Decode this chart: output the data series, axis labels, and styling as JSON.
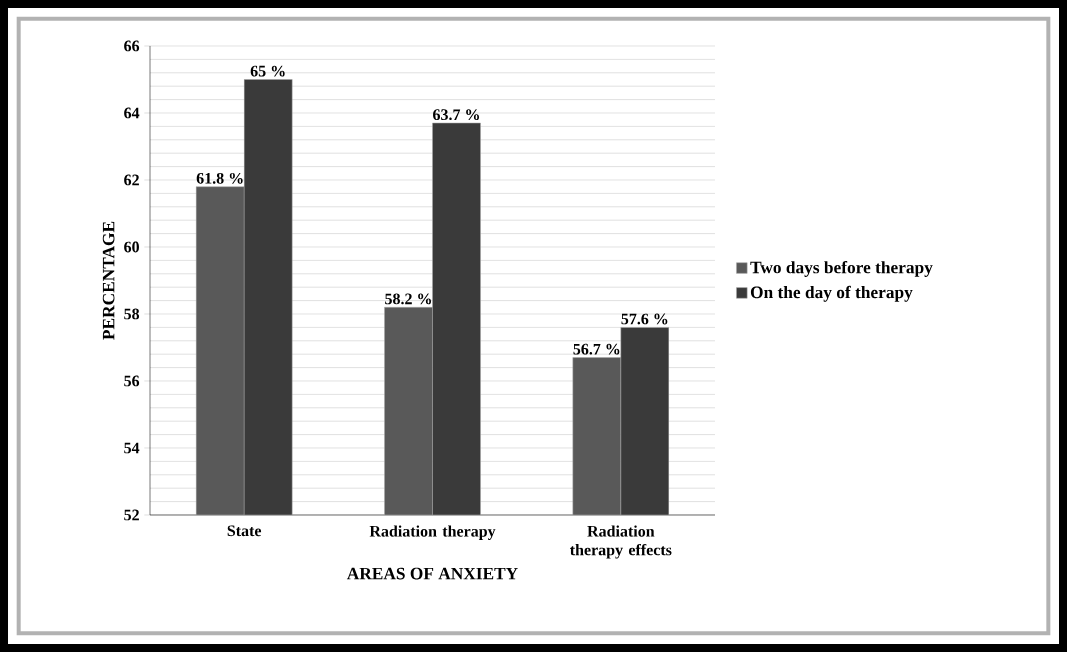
{
  "chart_data": {
    "type": "bar",
    "xlabel": "AREAS OF ANXIETY",
    "ylabel": "PERCENTAGE",
    "categories": [
      "State",
      "Radiation therapy",
      "Radiation therapy effects"
    ],
    "series": [
      {
        "name": "Two days before therapy",
        "color": "#595959",
        "values": [
          61.8,
          58.2,
          56.7
        ],
        "value_labels": [
          "61.8 %",
          "58.2 %",
          "56.7 %"
        ]
      },
      {
        "name": "On the day of therapy",
        "color": "#3a3a3a",
        "values": [
          65,
          63.7,
          57.6
        ],
        "value_labels": [
          "65 %",
          "63.7 %",
          "57.6 %"
        ]
      }
    ],
    "ylim": [
      52,
      66
    ],
    "yticks": [
      52,
      54,
      56,
      58,
      60,
      62,
      64,
      66
    ],
    "grid": "y",
    "legend": "right"
  }
}
